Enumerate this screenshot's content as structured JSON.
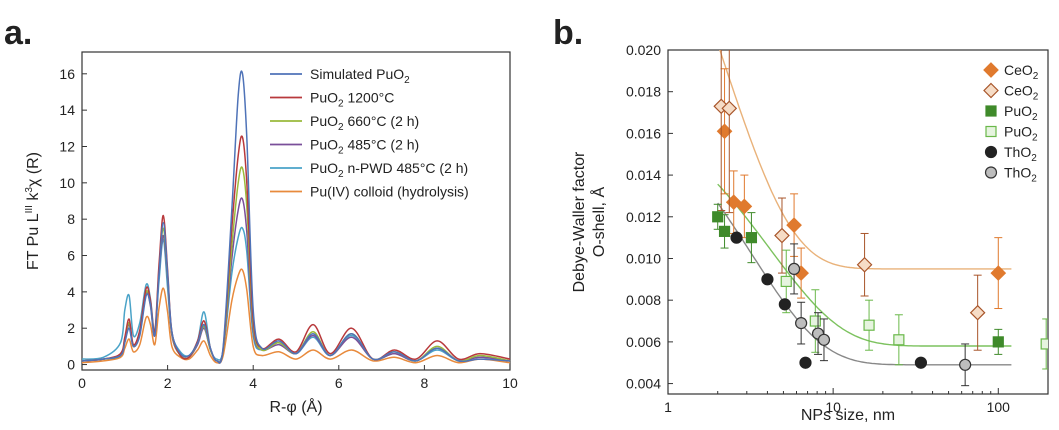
{
  "panels": {
    "a": {
      "label": "a."
    },
    "b": {
      "label": "b."
    }
  },
  "chart_data": [
    {
      "type": "line",
      "panel": "a",
      "title": "",
      "xlabel": "R-φ (Å)",
      "ylabel_main": "FT Pu L",
      "ylabel_sup1": "III",
      "ylabel_mid": " k",
      "ylabel_sup2": "3",
      "ylabel_end": "χ (R)",
      "xlim": [
        0,
        10
      ],
      "ylim": [
        -0.3,
        17.2
      ],
      "xticks": [
        0,
        2,
        4,
        6,
        8,
        10
      ],
      "yticks": [
        0,
        2,
        4,
        6,
        8,
        10,
        12,
        14,
        16
      ],
      "legend_position": "top-right",
      "series": [
        {
          "name_main": "Simulated PuO",
          "name_sub": "2",
          "name_rest": "",
          "color": "#4f73b8",
          "x": [
            0,
            0.5,
            0.9,
            1.0,
            1.1,
            1.2,
            1.35,
            1.5,
            1.6,
            1.7,
            1.8,
            1.9,
            2.0,
            2.1,
            2.3,
            2.5,
            2.7,
            2.85,
            3.0,
            3.15,
            3.3,
            3.5,
            3.65,
            3.75,
            3.85,
            4.0,
            4.2,
            4.6,
            5.0,
            5.4,
            5.8,
            6.3,
            6.8,
            7.3,
            7.8,
            8.3,
            8.8,
            9.3,
            10
          ],
          "y": [
            0.2,
            0.3,
            0.5,
            1.2,
            2.0,
            1.0,
            1.6,
            3.8,
            3.3,
            1.6,
            5.0,
            7.8,
            5.0,
            1.8,
            0.6,
            0.5,
            1.2,
            2.2,
            0.9,
            0.2,
            1.0,
            8.5,
            14.8,
            16.0,
            12.5,
            3.0,
            0.9,
            1.3,
            0.6,
            1.7,
            0.5,
            1.7,
            0.3,
            0.7,
            0.2,
            0.9,
            0.2,
            0.3,
            0.2
          ]
        },
        {
          "name_main": "PuO",
          "name_sub": "2",
          "name_rest": " 1200°C",
          "color": "#b8393c",
          "x": [
            0,
            0.5,
            0.9,
            1.0,
            1.1,
            1.2,
            1.35,
            1.5,
            1.6,
            1.7,
            1.8,
            1.9,
            2.0,
            2.1,
            2.3,
            2.5,
            2.7,
            2.85,
            3.0,
            3.15,
            3.3,
            3.5,
            3.65,
            3.75,
            3.85,
            4.0,
            4.2,
            4.6,
            5.0,
            5.4,
            5.8,
            6.3,
            6.8,
            7.3,
            7.8,
            8.3,
            8.8,
            9.3,
            10
          ],
          "y": [
            0.2,
            0.3,
            0.6,
            1.5,
            2.5,
            1.1,
            1.9,
            4.2,
            3.5,
            1.8,
            5.5,
            8.2,
            5.2,
            1.8,
            0.5,
            0.4,
            1.3,
            2.4,
            0.9,
            0.2,
            0.9,
            7.5,
            11.5,
            12.5,
            10.0,
            2.5,
            0.9,
            1.4,
            0.7,
            2.2,
            0.6,
            2.0,
            0.3,
            0.8,
            0.3,
            1.3,
            0.3,
            0.6,
            0.3
          ]
        },
        {
          "name_main": "PuO",
          "name_sub": "2",
          "name_rest": " 660°C (2 h)",
          "color": "#9aba3c",
          "x": [
            0,
            0.5,
            0.9,
            1.0,
            1.1,
            1.2,
            1.35,
            1.5,
            1.6,
            1.7,
            1.8,
            1.9,
            2.0,
            2.1,
            2.3,
            2.5,
            2.7,
            2.85,
            3.0,
            3.15,
            3.3,
            3.5,
            3.65,
            3.75,
            3.85,
            4.0,
            4.2,
            4.6,
            5.0,
            5.4,
            5.8,
            6.3,
            6.8,
            7.3,
            7.8,
            8.3,
            8.8,
            9.3,
            10
          ],
          "y": [
            0.2,
            0.3,
            0.5,
            1.4,
            2.3,
            1.0,
            1.8,
            4.0,
            3.3,
            1.7,
            5.2,
            7.5,
            4.9,
            1.7,
            0.5,
            0.4,
            1.2,
            2.1,
            0.8,
            0.2,
            0.8,
            6.5,
            10.0,
            10.8,
            8.7,
            2.2,
            0.8,
            1.2,
            0.6,
            1.8,
            0.5,
            1.7,
            0.3,
            0.7,
            0.2,
            1.0,
            0.2,
            0.5,
            0.2
          ]
        },
        {
          "name_main": "PuO",
          "name_sub": "2",
          "name_rest": " 485°C (2 h)",
          "color": "#7a4f9a",
          "x": [
            0,
            0.5,
            0.9,
            1.0,
            1.1,
            1.2,
            1.35,
            1.5,
            1.6,
            1.7,
            1.8,
            1.9,
            2.0,
            2.1,
            2.3,
            2.5,
            2.7,
            2.85,
            3.0,
            3.15,
            3.3,
            3.5,
            3.65,
            3.75,
            3.85,
            4.0,
            4.2,
            4.6,
            5.0,
            5.4,
            5.8,
            6.3,
            6.8,
            7.3,
            7.8,
            8.3,
            8.8,
            9.3,
            10
          ],
          "y": [
            0.2,
            0.3,
            0.5,
            1.3,
            2.2,
            1.0,
            1.7,
            3.9,
            3.2,
            1.6,
            5.0,
            7.1,
            4.7,
            1.6,
            0.5,
            0.4,
            1.1,
            2.0,
            0.8,
            0.2,
            0.8,
            5.8,
            8.5,
            9.1,
            7.3,
            1.9,
            0.8,
            1.1,
            0.6,
            1.6,
            0.5,
            1.5,
            0.3,
            0.6,
            0.2,
            0.9,
            0.2,
            0.4,
            0.2
          ]
        },
        {
          "name_main": "PuO",
          "name_sub": "2",
          "name_rest": " n-PWD 485°C (2 h)",
          "color": "#4aa3c8",
          "x": [
            0,
            0.5,
            0.9,
            1.0,
            1.1,
            1.2,
            1.35,
            1.5,
            1.6,
            1.7,
            1.8,
            1.9,
            2.0,
            2.1,
            2.3,
            2.5,
            2.7,
            2.85,
            3.0,
            3.15,
            3.3,
            3.5,
            3.65,
            3.75,
            3.85,
            4.0,
            4.2,
            4.6,
            5.0,
            5.4,
            5.8,
            6.3,
            6.8,
            7.3,
            7.8,
            8.3,
            8.8,
            9.3,
            10
          ],
          "y": [
            0.3,
            0.4,
            1.2,
            3.0,
            3.8,
            1.6,
            2.3,
            4.4,
            3.6,
            1.8,
            4.6,
            6.9,
            4.2,
            1.7,
            0.7,
            0.5,
            1.3,
            2.9,
            0.9,
            0.3,
            0.8,
            5.0,
            7.0,
            7.5,
            6.2,
            1.6,
            0.8,
            1.2,
            0.6,
            1.5,
            0.5,
            1.6,
            0.3,
            0.6,
            0.2,
            0.8,
            0.2,
            0.4,
            0.2
          ]
        },
        {
          "name_main": "Pu(IV) colloid (hydrolysis)",
          "name_sub": "",
          "name_rest": "",
          "color": "#e88a3c",
          "x": [
            0,
            0.5,
            0.9,
            1.0,
            1.1,
            1.2,
            1.35,
            1.5,
            1.6,
            1.7,
            1.8,
            1.9,
            2.0,
            2.1,
            2.3,
            2.5,
            2.7,
            2.85,
            3.0,
            3.15,
            3.3,
            3.5,
            3.65,
            3.75,
            3.85,
            4.0,
            4.2,
            4.6,
            5.0,
            5.4,
            5.8,
            6.3,
            6.8,
            7.3,
            7.8,
            8.3,
            8.8,
            9.3,
            10
          ],
          "y": [
            0.1,
            0.2,
            0.4,
            0.9,
            1.4,
            0.7,
            1.1,
            2.6,
            2.2,
            1.1,
            3.1,
            4.2,
            2.9,
            1.0,
            0.4,
            0.3,
            0.8,
            1.3,
            0.5,
            0.1,
            0.5,
            3.5,
            4.9,
            5.2,
            4.1,
            1.0,
            0.5,
            0.7,
            0.3,
            0.8,
            0.3,
            0.8,
            0.2,
            0.4,
            0.1,
            0.5,
            0.1,
            0.3,
            0.1
          ]
        }
      ]
    },
    {
      "type": "scatter",
      "panel": "b",
      "title": "",
      "xlabel": "NPs size, nm",
      "ylabel_line1": "Debye-Waller factor",
      "ylabel_line2": "O-shell, Å",
      "xscale": "log",
      "xlim": [
        1,
        200
      ],
      "ylim": [
        0.0035,
        0.02
      ],
      "xticks": [
        1,
        10,
        100
      ],
      "yticks": [
        0.004,
        0.006,
        0.008,
        0.01,
        0.012,
        0.014,
        0.016,
        0.018,
        0.02
      ],
      "ytick_labels": [
        "0.004",
        "0.006",
        "0.008",
        "0.010",
        "0.012",
        "0.014",
        "0.016",
        "0.018",
        "0.020"
      ],
      "legend_position": "top-right",
      "series": [
        {
          "name_main": "CeO",
          "name_sub": "2",
          "marker": "diamond",
          "fill": "#e07a2e",
          "stroke": "#e07a2e",
          "points": [
            {
              "x": 2.2,
              "y": 0.0161,
              "err": 0.003
            },
            {
              "x": 2.5,
              "y": 0.0127,
              "err": 0.0015
            },
            {
              "x": 2.9,
              "y": 0.0125,
              "err": 0.0015
            },
            {
              "x": 5.8,
              "y": 0.0116,
              "err": 0.0015
            },
            {
              "x": 6.4,
              "y": 0.0093,
              "err": 0.0012
            },
            {
              "x": 100,
              "y": 0.0093,
              "err": 0.0017
            }
          ]
        },
        {
          "name_main": "CeO",
          "name_sub": "2",
          "marker": "diamond-open",
          "fill": "#f6dcc6",
          "stroke": "#a8552a",
          "points": [
            {
              "x": 2.1,
              "y": 0.0173,
              "err": 0.005
            },
            {
              "x": 2.35,
              "y": 0.0172,
              "err": 0.005
            },
            {
              "x": 4.9,
              "y": 0.0111,
              "err": 0.0018
            },
            {
              "x": 15.5,
              "y": 0.0097,
              "err": 0.0015
            },
            {
              "x": 75,
              "y": 0.0074,
              "err": 0.0018
            }
          ]
        },
        {
          "name_main": "PuO",
          "name_sub": "2",
          "marker": "square",
          "fill": "#3f8a2a",
          "stroke": "#3f8a2a",
          "points": [
            {
              "x": 2.0,
              "y": 0.012,
              "err": 0.0006
            },
            {
              "x": 2.2,
              "y": 0.0113,
              "err": 0.0008
            },
            {
              "x": 3.2,
              "y": 0.011,
              "err": 0.0012
            },
            {
              "x": 100,
              "y": 0.006,
              "err": 0.0006
            }
          ]
        },
        {
          "name_main": "PuO",
          "name_sub": "2",
          "marker": "square-open",
          "fill": "#e6f4df",
          "stroke": "#6ab84a",
          "points": [
            {
              "x": 5.2,
              "y": 0.0089,
              "err": 0.0015
            },
            {
              "x": 7.8,
              "y": 0.007,
              "err": 0.0015
            },
            {
              "x": 16.5,
              "y": 0.0068,
              "err": 0.0012
            },
            {
              "x": 25,
              "y": 0.0061,
              "err": 0.0012
            },
            {
              "x": 195,
              "y": 0.0059,
              "err": 0.0012
            }
          ]
        },
        {
          "name_main": "ThO",
          "name_sub": "2",
          "marker": "circle",
          "fill": "#222222",
          "stroke": "#222222",
          "points": [
            {
              "x": 2.6,
              "y": 0.011,
              "err": 0
            },
            {
              "x": 4.0,
              "y": 0.009,
              "err": 0
            },
            {
              "x": 5.1,
              "y": 0.0078,
              "err": 0
            },
            {
              "x": 6.8,
              "y": 0.005,
              "err": 0
            },
            {
              "x": 34,
              "y": 0.005,
              "err": 0
            }
          ]
        },
        {
          "name_main": "ThO",
          "name_sub": "2",
          "marker": "circle-open",
          "fill": "#bdbdbd",
          "stroke": "#333333",
          "points": [
            {
              "x": 5.8,
              "y": 0.0095,
              "err": 0.0012
            },
            {
              "x": 6.4,
              "y": 0.0069,
              "err": 0.001
            },
            {
              "x": 8.1,
              "y": 0.0064,
              "err": 0.001
            },
            {
              "x": 8.8,
              "y": 0.0061,
              "err": 0.001
            },
            {
              "x": 63,
              "y": 0.0049,
              "err": 0.001
            }
          ]
        }
      ],
      "fits": [
        {
          "color": "#e9b27a",
          "plateau": 0.0095,
          "amp": 0.028,
          "tau": 2.1
        },
        {
          "color": "#7cc25e",
          "plateau": 0.0058,
          "amp": 0.0125,
          "tau": 4.2
        },
        {
          "color": "#888888",
          "plateau": 0.0049,
          "amp": 0.0145,
          "tau": 3.2
        }
      ]
    }
  ]
}
